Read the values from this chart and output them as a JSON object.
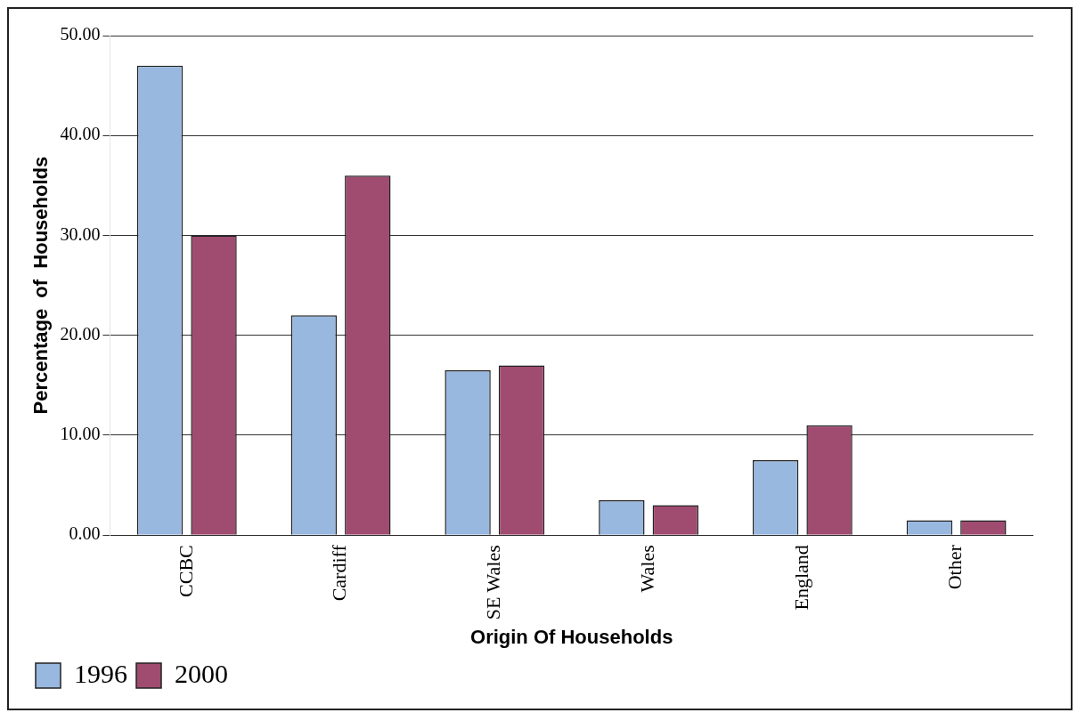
{
  "chart_data": {
    "type": "bar",
    "xlabel": "Origin Of Households",
    "ylabel": "Percentage  of  Households",
    "categories": [
      "CCBC",
      "Cardiff",
      "SE Wales",
      "Wales",
      "England",
      "Other"
    ],
    "series": [
      {
        "name": "1996",
        "color": "#99b8e0",
        "values": [
          47,
          22,
          16.5,
          3.5,
          7.5,
          1.5
        ]
      },
      {
        "name": "2000",
        "color": "#a04c70",
        "values": [
          30,
          36,
          17,
          3,
          11,
          1.5
        ]
      }
    ],
    "ylim": [
      0,
      50
    ],
    "yticks": [
      {
        "value": 0,
        "label": "0.00"
      },
      {
        "value": 10,
        "label": "10.00"
      },
      {
        "value": 20,
        "label": "20.00"
      },
      {
        "value": 30,
        "label": "30.00"
      },
      {
        "value": 40,
        "label": "40.00"
      },
      {
        "value": 50,
        "label": "50.00"
      }
    ],
    "grid": "y",
    "legend": "bottom left"
  }
}
